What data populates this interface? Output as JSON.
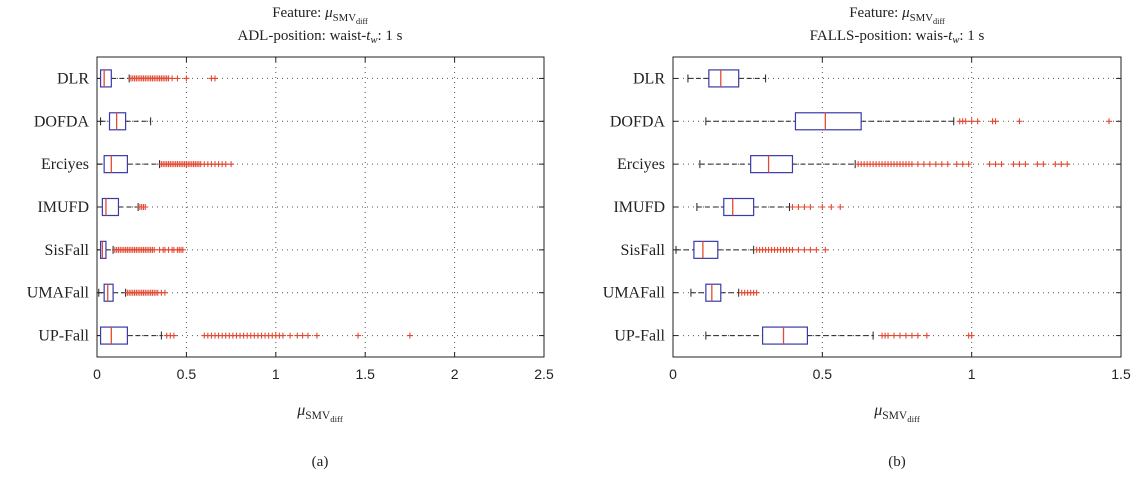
{
  "chart_data": [
    {
      "type": "boxplot",
      "title_line1": "Feature: μSMVdiff",
      "title_line2": "ADL-position: waist-t_w: 1 s",
      "xlabel": "μSMVdiff",
      "caption": "(a)",
      "xlim": [
        0,
        2.5
      ],
      "xticks": [
        "0",
        "0.5",
        "1",
        "1.5",
        "2",
        "2.5"
      ],
      "xtick_values": [
        0,
        0.5,
        1,
        1.5,
        2,
        2.5
      ],
      "categories": [
        "DLR",
        "DOFDA",
        "Erciyes",
        "IMUFD",
        "SisFall",
        "UMAFall",
        "UP-Fall"
      ],
      "boxes": [
        {
          "name": "DLR",
          "whislo": 0.0,
          "q1": 0.02,
          "med": 0.04,
          "q3": 0.08,
          "whishi": 0.18,
          "fliers": [
            0.19,
            0.2,
            0.21,
            0.22,
            0.23,
            0.24,
            0.25,
            0.26,
            0.27,
            0.28,
            0.29,
            0.3,
            0.31,
            0.32,
            0.33,
            0.34,
            0.35,
            0.36,
            0.37,
            0.38,
            0.39,
            0.4,
            0.42,
            0.45,
            0.5,
            0.64,
            0.66
          ]
        },
        {
          "name": "DOFDA",
          "whislo": 0.02,
          "q1": 0.07,
          "med": 0.11,
          "q3": 0.16,
          "whishi": 0.3,
          "fliers": []
        },
        {
          "name": "Erciyes",
          "whislo": 0.0,
          "q1": 0.04,
          "med": 0.08,
          "q3": 0.17,
          "whishi": 0.35,
          "fliers": [
            0.36,
            0.37,
            0.38,
            0.39,
            0.4,
            0.41,
            0.42,
            0.43,
            0.44,
            0.45,
            0.46,
            0.47,
            0.48,
            0.49,
            0.5,
            0.51,
            0.52,
            0.53,
            0.54,
            0.55,
            0.56,
            0.57,
            0.58,
            0.6,
            0.62,
            0.64,
            0.66,
            0.68,
            0.7,
            0.72,
            0.75
          ]
        },
        {
          "name": "IMUFD",
          "whislo": 0.0,
          "q1": 0.03,
          "med": 0.05,
          "q3": 0.12,
          "whishi": 0.23,
          "fliers": [
            0.24,
            0.25,
            0.26,
            0.27
          ]
        },
        {
          "name": "SisFall",
          "whislo": 0.0,
          "q1": 0.02,
          "med": 0.03,
          "q3": 0.05,
          "whishi": 0.09,
          "fliers": [
            0.1,
            0.11,
            0.12,
            0.13,
            0.14,
            0.15,
            0.16,
            0.17,
            0.18,
            0.19,
            0.2,
            0.21,
            0.22,
            0.23,
            0.24,
            0.25,
            0.26,
            0.27,
            0.28,
            0.29,
            0.3,
            0.31,
            0.32,
            0.35,
            0.37,
            0.38,
            0.4,
            0.42,
            0.43,
            0.45,
            0.46,
            0.47,
            0.48
          ]
        },
        {
          "name": "UMAFall",
          "whislo": 0.01,
          "q1": 0.04,
          "med": 0.06,
          "q3": 0.09,
          "whishi": 0.16,
          "fliers": [
            0.17,
            0.18,
            0.19,
            0.2,
            0.21,
            0.22,
            0.23,
            0.24,
            0.25,
            0.26,
            0.27,
            0.28,
            0.29,
            0.3,
            0.31,
            0.32,
            0.33,
            0.34,
            0.36,
            0.38
          ]
        },
        {
          "name": "UP-Fall",
          "whislo": 0.0,
          "q1": 0.02,
          "med": 0.08,
          "q3": 0.17,
          "whishi": 0.36,
          "fliers": [
            0.39,
            0.41,
            0.43,
            0.6,
            0.62,
            0.64,
            0.66,
            0.68,
            0.7,
            0.72,
            0.74,
            0.76,
            0.78,
            0.8,
            0.82,
            0.84,
            0.86,
            0.88,
            0.9,
            0.92,
            0.94,
            0.96,
            0.98,
            1.0,
            1.02,
            1.04,
            1.08,
            1.12,
            1.15,
            1.18,
            1.23,
            1.46,
            1.75
          ]
        }
      ]
    },
    {
      "type": "boxplot",
      "title_line1": "Feature: μSMVdiff",
      "title_line2": "FALLS-position: wais-t_w: 1 s",
      "xlabel": "μSMVdiff",
      "caption": "(b)",
      "xlim": [
        0,
        1.5
      ],
      "xticks": [
        "0",
        "0.5",
        "1",
        "1.5"
      ],
      "xtick_values": [
        0,
        0.5,
        1,
        1.5
      ],
      "categories": [
        "DLR",
        "DOFDA",
        "Erciyes",
        "IMUFD",
        "SisFall",
        "UMAFall",
        "UP-Fall"
      ],
      "boxes": [
        {
          "name": "DLR",
          "whislo": 0.05,
          "q1": 0.12,
          "med": 0.16,
          "q3": 0.22,
          "whishi": 0.31,
          "fliers": []
        },
        {
          "name": "DOFDA",
          "whislo": 0.11,
          "q1": 0.41,
          "med": 0.51,
          "q3": 0.63,
          "whishi": 0.94,
          "fliers": [
            0.96,
            0.97,
            0.98,
            1.0,
            1.02,
            1.07,
            1.08,
            1.16,
            1.46
          ]
        },
        {
          "name": "Erciyes",
          "whislo": 0.09,
          "q1": 0.26,
          "med": 0.32,
          "q3": 0.4,
          "whishi": 0.61,
          "fliers": [
            0.62,
            0.63,
            0.64,
            0.65,
            0.66,
            0.67,
            0.68,
            0.69,
            0.7,
            0.71,
            0.72,
            0.73,
            0.74,
            0.75,
            0.76,
            0.77,
            0.78,
            0.79,
            0.8,
            0.82,
            0.84,
            0.86,
            0.88,
            0.9,
            0.92,
            0.95,
            0.97,
            0.99,
            1.06,
            1.08,
            1.1,
            1.14,
            1.16,
            1.18,
            1.22,
            1.24,
            1.28,
            1.3,
            1.32
          ]
        },
        {
          "name": "IMUFD",
          "whislo": 0.08,
          "q1": 0.17,
          "med": 0.2,
          "q3": 0.27,
          "whishi": 0.39,
          "fliers": [
            0.4,
            0.42,
            0.44,
            0.46,
            0.5,
            0.53,
            0.56
          ]
        },
        {
          "name": "SisFall",
          "whislo": 0.01,
          "q1": 0.07,
          "med": 0.1,
          "q3": 0.15,
          "whishi": 0.27,
          "fliers": [
            0.28,
            0.29,
            0.3,
            0.31,
            0.32,
            0.33,
            0.34,
            0.35,
            0.36,
            0.37,
            0.38,
            0.39,
            0.4,
            0.42,
            0.44,
            0.46,
            0.48,
            0.51
          ]
        },
        {
          "name": "UMAFall",
          "whislo": 0.06,
          "q1": 0.11,
          "med": 0.13,
          "q3": 0.16,
          "whishi": 0.22,
          "fliers": [
            0.23,
            0.24,
            0.25,
            0.26,
            0.27,
            0.28
          ]
        },
        {
          "name": "UP-Fall",
          "whislo": 0.11,
          "q1": 0.3,
          "med": 0.37,
          "q3": 0.45,
          "whishi": 0.67,
          "fliers": [
            0.7,
            0.71,
            0.72,
            0.74,
            0.76,
            0.78,
            0.8,
            0.82,
            0.85,
            0.99,
            1.0
          ]
        }
      ]
    }
  ],
  "colors": {
    "box": "#3a3aa8",
    "median": "#e24a33",
    "flier": "#e24a33",
    "whisker": "#222222",
    "grid": "#555555",
    "axis": "#222222"
  }
}
